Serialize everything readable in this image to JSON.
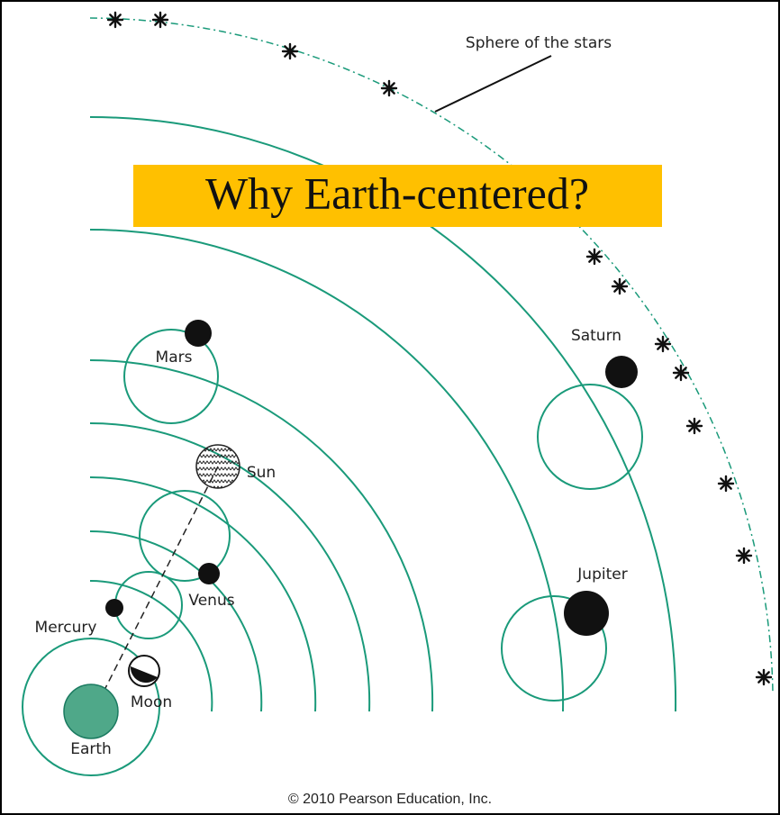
{
  "title": "Why Earth-centered?",
  "labels": {
    "sphere": "Sphere of the stars",
    "mars": "Mars",
    "saturn": "Saturn",
    "sun": "Sun",
    "venus": "Venus",
    "mercury": "Mercury",
    "moon": "Moon",
    "earth": "Earth",
    "jupiter": "Jupiter"
  },
  "footer": "© 2010 Pearson Education, Inc."
}
